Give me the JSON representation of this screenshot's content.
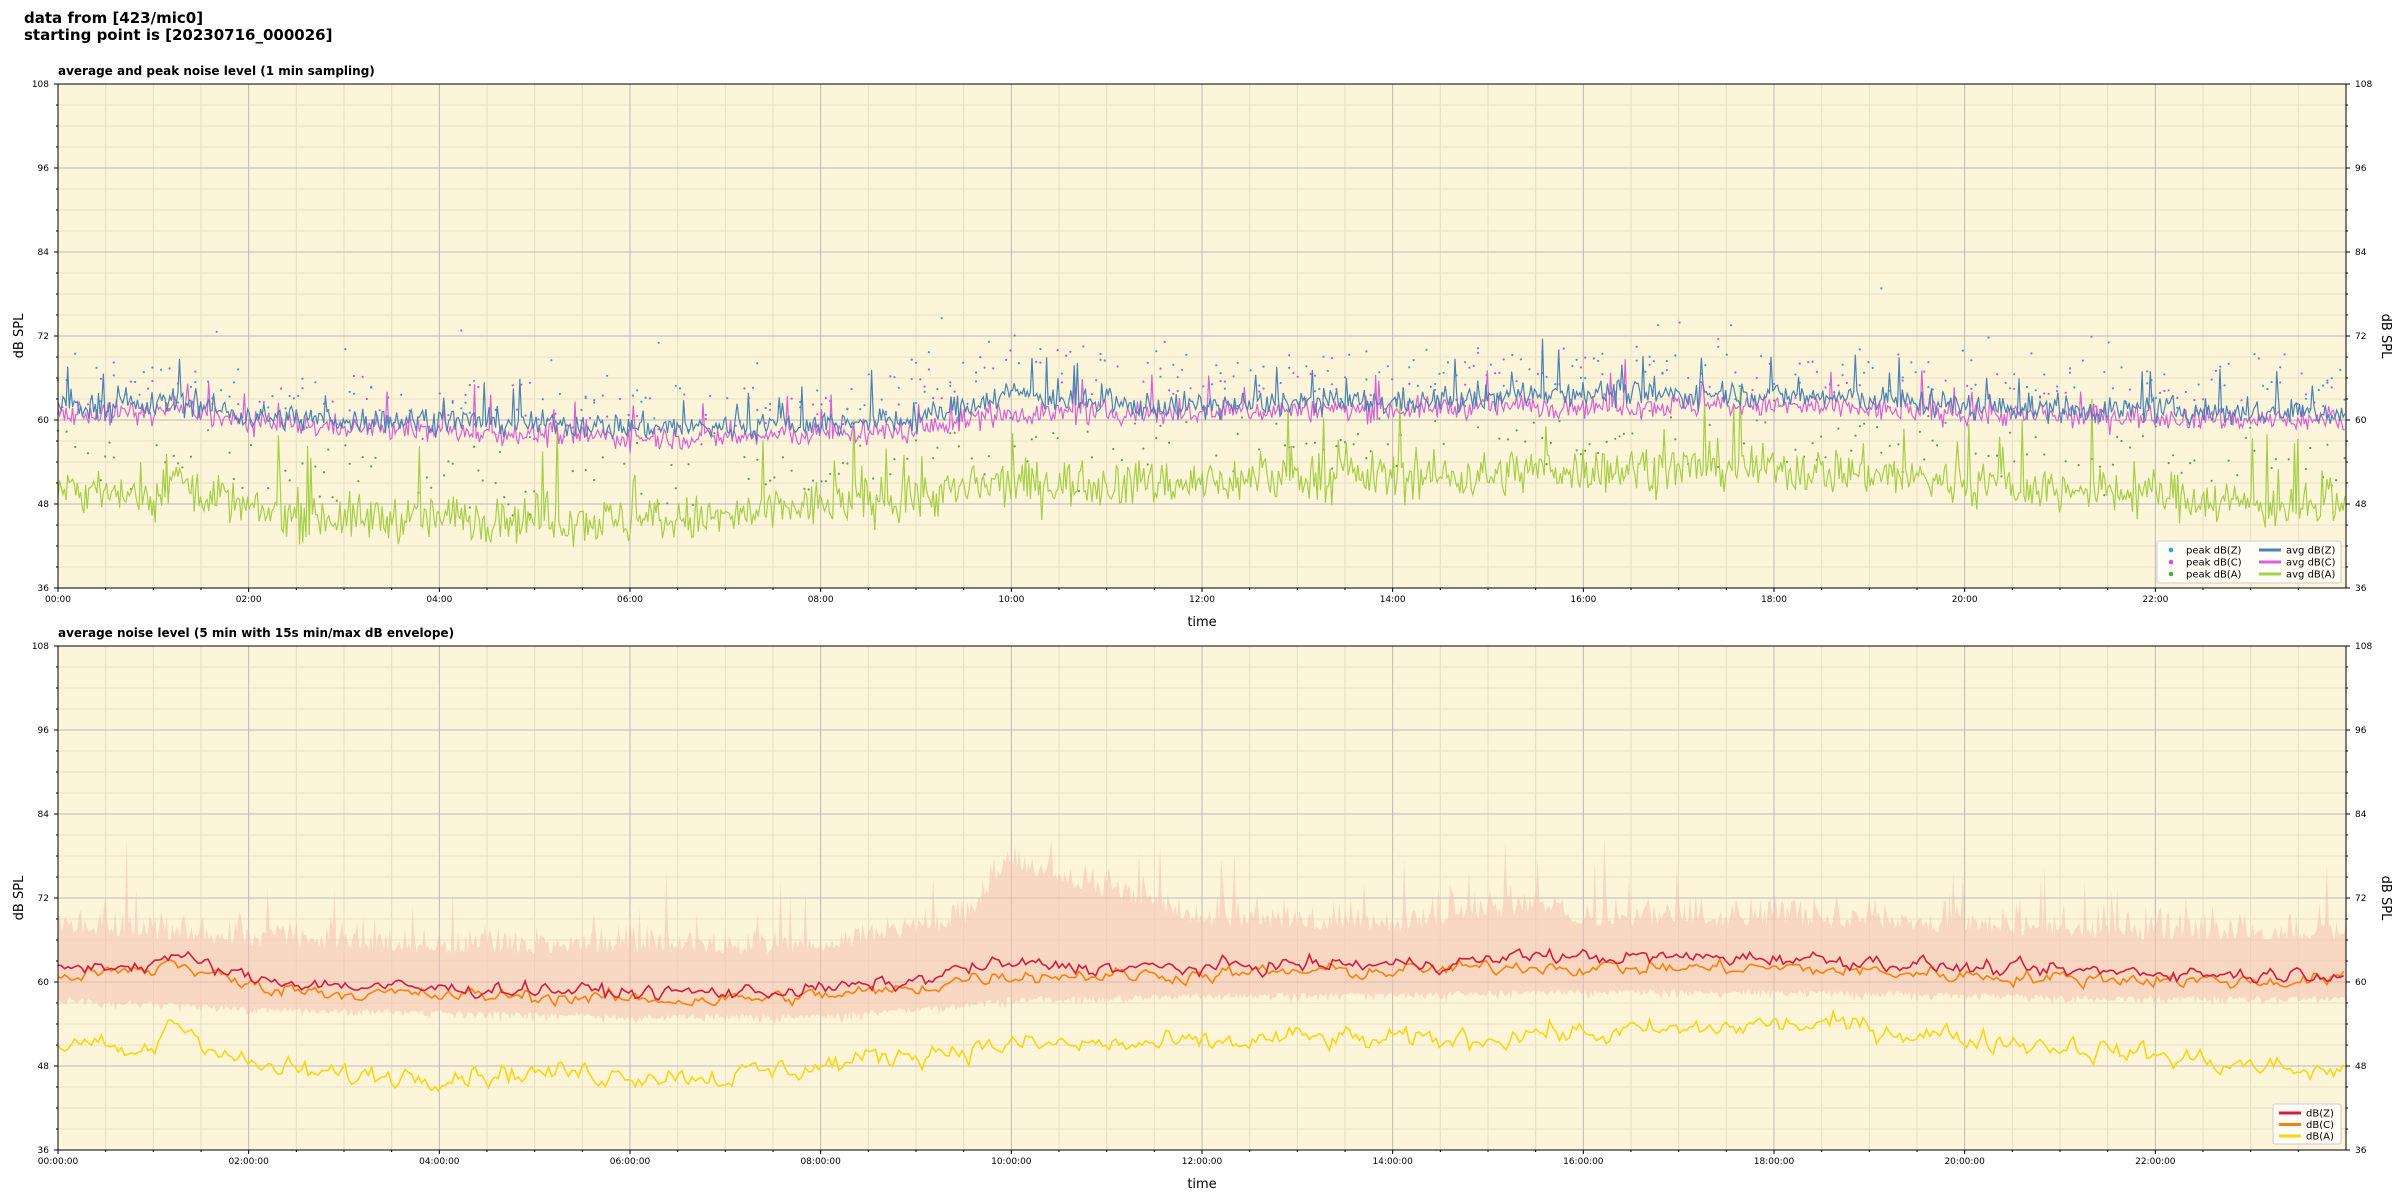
{
  "header": {
    "line1": "data from [423/mic0]",
    "line2": "starting point is [20230716_000026]"
  },
  "colors": {
    "background": "#fdf5da",
    "grid_major": "#b9b9b9",
    "grid_minor": "#e7dfc4",
    "peak_z": "#27a3dd",
    "peak_c": "#d14fe0",
    "peak_a": "#5c9e57",
    "avg_z": "#4a82b4",
    "avg_c": "#d761d6",
    "avg_a": "#a5cf45",
    "env_z": "#d71a40",
    "env_c": "#fd8008",
    "env_a": "#ffd40c",
    "envelope": "#f4bfae"
  },
  "chart_data": [
    {
      "type": "line",
      "title": "average and peak noise level (1 min sampling)",
      "xlabel": "time",
      "ylabel": "dB SPL",
      "ylim": [
        36,
        108
      ],
      "xlim_hours": [
        0,
        24
      ],
      "yticks": [
        36,
        48,
        60,
        72,
        84,
        96,
        108
      ],
      "xticks": [
        "00:00",
        "02:00",
        "04:00",
        "06:00",
        "08:00",
        "10:00",
        "12:00",
        "14:00",
        "16:00",
        "18:00",
        "20:00",
        "22:00"
      ],
      "grid": true,
      "legend_position": "lower-right",
      "legend": [
        "peak dB(Z)",
        "peak dB(C)",
        "peak dB(A)",
        "avg dB(Z)",
        "avg dB(C)",
        "avg dB(A)"
      ],
      "series_profiles": [
        {
          "name": "avg dB(Z)",
          "kind": "line",
          "x": [
            0,
            1,
            1.2,
            2,
            3,
            4,
            5,
            6,
            7,
            8,
            9,
            9.5,
            10,
            10.5,
            11,
            12,
            13,
            14,
            15,
            15.5,
            16,
            17,
            17.5,
            18,
            19,
            20,
            21,
            22,
            23,
            24
          ],
          "values": [
            62,
            62,
            63,
            60.5,
            60,
            60,
            59.5,
            59,
            59,
            59.5,
            60,
            62,
            64,
            63,
            62,
            62,
            62.5,
            62.5,
            63,
            64,
            64,
            63.5,
            64,
            63.5,
            63,
            62,
            61.5,
            61.5,
            61,
            61
          ]
        },
        {
          "name": "avg dB(C)",
          "kind": "line",
          "x": [
            0,
            1,
            1.2,
            2,
            3,
            4,
            5,
            6,
            7,
            8,
            9,
            9.5,
            10,
            10.5,
            11,
            12,
            13,
            14,
            15,
            15.5,
            16,
            17,
            17.5,
            18,
            19,
            20,
            21,
            22,
            23,
            24
          ],
          "values": [
            61,
            61,
            62,
            59.5,
            59,
            58.5,
            58,
            57.5,
            57.5,
            58,
            58.5,
            60,
            61,
            61,
            61,
            61,
            61.5,
            61.5,
            62,
            62,
            62,
            62,
            62,
            62,
            61.5,
            61,
            60.5,
            60.5,
            60,
            60
          ]
        },
        {
          "name": "avg dB(A)",
          "kind": "line",
          "x": [
            0,
            1,
            1.2,
            2,
            3,
            4,
            5,
            6,
            7,
            8,
            9,
            9.5,
            10,
            10.5,
            11,
            12,
            13,
            14,
            15,
            15.5,
            16,
            17,
            17.5,
            18,
            19,
            20,
            21,
            22,
            23,
            24
          ],
          "values": [
            50,
            49,
            52,
            47,
            46,
            46,
            46,
            45.5,
            46,
            48,
            49,
            50,
            51,
            51,
            51,
            51,
            52,
            52,
            52,
            53,
            53,
            53,
            53.5,
            53,
            52.5,
            51,
            50,
            49.5,
            48,
            47
          ]
        },
        {
          "name": "peak dB(Z)",
          "kind": "scatter",
          "x": [
            0,
            2,
            4,
            6,
            8,
            9.5,
            10,
            11,
            12,
            14,
            16,
            18,
            20,
            22,
            24
          ],
          "values": [
            66,
            64,
            63,
            62,
            62,
            66,
            70,
            68,
            66,
            67,
            68,
            67,
            66,
            65,
            65
          ]
        },
        {
          "name": "peak dB(C)",
          "kind": "scatter",
          "x": [
            0,
            2,
            4,
            6,
            8,
            9.5,
            10,
            11,
            12,
            14,
            16,
            18,
            20,
            22,
            24
          ],
          "values": [
            65,
            63,
            62,
            61,
            61,
            65,
            69,
            67,
            65,
            66,
            67,
            66,
            65,
            64,
            64
          ]
        },
        {
          "name": "peak dB(A)",
          "kind": "scatter",
          "x": [
            0,
            2,
            4,
            6,
            8,
            9.5,
            10,
            11,
            12,
            14,
            16,
            18,
            20,
            22,
            24
          ],
          "values": [
            56,
            53,
            52,
            51,
            52,
            55,
            58,
            57,
            56,
            57,
            58,
            57,
            56,
            55,
            55
          ]
        }
      ]
    },
    {
      "type": "line",
      "title": "average noise level (5 min with 15s min/max dB envelope)",
      "xlabel": "time",
      "ylabel": "dB SPL",
      "ylim": [
        36,
        108
      ],
      "xlim_hours": [
        0,
        24
      ],
      "yticks": [
        36,
        48,
        60,
        72,
        84,
        96,
        108
      ],
      "xticks": [
        "00:00:00",
        "02:00:00",
        "04:00:00",
        "06:00:00",
        "08:00:00",
        "10:00:00",
        "12:00:00",
        "14:00:00",
        "16:00:00",
        "18:00:00",
        "20:00:00",
        "22:00:00"
      ],
      "grid": true,
      "legend_position": "lower-right",
      "legend": [
        "dB(Z)",
        "dB(C)",
        "dB(A)"
      ],
      "series_profiles": [
        {
          "name": "dB(Z)",
          "kind": "line",
          "x": [
            0,
            1,
            1.15,
            2,
            3,
            4,
            5,
            6,
            7,
            8,
            9,
            9.5,
            10,
            11,
            12,
            13,
            14,
            15,
            15.5,
            16,
            17,
            18,
            19,
            20,
            21,
            22,
            23,
            24
          ],
          "values": [
            62,
            62.5,
            64,
            60.5,
            59.5,
            59,
            59,
            58.5,
            58.5,
            59,
            60,
            62,
            62.5,
            62,
            62,
            62.5,
            62.5,
            63,
            64,
            63.5,
            63.5,
            63.5,
            63,
            62,
            61.5,
            61.5,
            61,
            61.5
          ]
        },
        {
          "name": "dB(C)",
          "kind": "line",
          "x": [
            0,
            1,
            1.15,
            2,
            3,
            4,
            5,
            6,
            7,
            8,
            9,
            9.5,
            10,
            11,
            12,
            13,
            14,
            15,
            15.5,
            16,
            17,
            18,
            19,
            20,
            21,
            22,
            23,
            24
          ],
          "values": [
            61,
            61.5,
            63,
            59.5,
            58.5,
            58,
            58,
            57.5,
            57.5,
            58,
            59,
            60.5,
            61,
            61,
            61,
            61.5,
            61.5,
            62,
            62.5,
            62,
            62,
            62,
            61.5,
            61,
            60.5,
            60.5,
            60,
            60.5
          ]
        },
        {
          "name": "dB(A)",
          "kind": "line",
          "x": [
            0,
            1,
            1.15,
            2,
            3,
            4,
            5,
            6,
            7,
            8,
            9,
            9.5,
            10,
            11,
            12,
            13,
            14,
            15,
            15.5,
            16,
            17,
            18,
            19,
            20,
            21,
            22,
            23,
            24
          ],
          "values": [
            51,
            49.5,
            55,
            48,
            46.5,
            47,
            47,
            47,
            46.5,
            48,
            50,
            50.5,
            51,
            51,
            51,
            52,
            51.5,
            52,
            53,
            52.5,
            53,
            54,
            53.5,
            52,
            51,
            49.5,
            48,
            47
          ]
        },
        {
          "name": "envelope max",
          "kind": "band-top",
          "x": [
            0,
            2,
            4,
            6,
            8,
            9.5,
            10,
            11,
            12,
            14,
            15.5,
            16,
            18,
            20,
            22,
            24
          ],
          "values": [
            67,
            65,
            64,
            64,
            64,
            68,
            76,
            72,
            68,
            67,
            70,
            68,
            68,
            67,
            66,
            66
          ]
        },
        {
          "name": "envelope min",
          "kind": "band-bottom",
          "x": [
            0,
            2,
            4,
            6,
            8,
            9.5,
            10,
            11,
            12,
            14,
            15.5,
            16,
            18,
            20,
            22,
            24
          ],
          "values": [
            58,
            56.5,
            56,
            55.5,
            55.5,
            57,
            58,
            58,
            58.5,
            58.5,
            59,
            59,
            59,
            58.5,
            58,
            58
          ]
        }
      ]
    }
  ]
}
